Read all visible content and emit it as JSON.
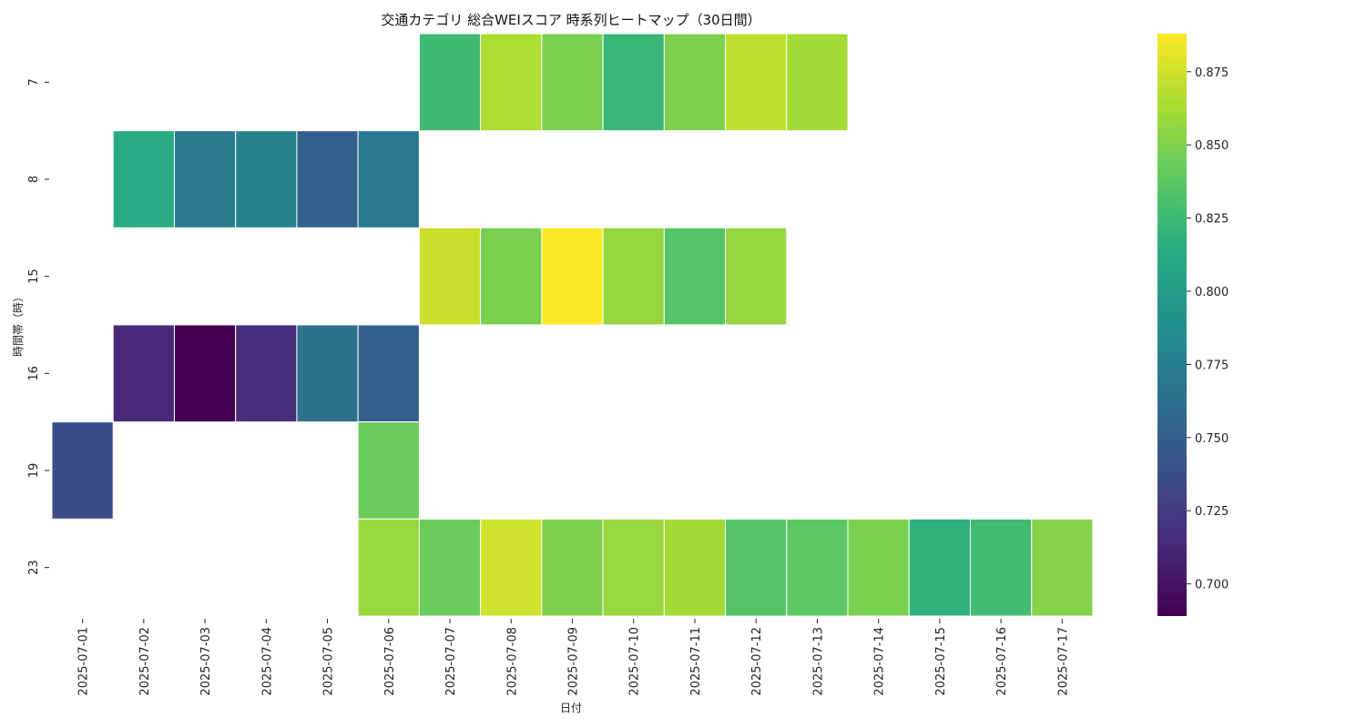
{
  "chart_data": {
    "type": "heatmap",
    "title": "交通カテゴリ 総合WEIスコア 時系列ヒートマップ（30日間）",
    "xlabel": "日付",
    "ylabel": "時間帯（時）",
    "x": [
      "2025-07-01",
      "2025-07-02",
      "2025-07-03",
      "2025-07-04",
      "2025-07-05",
      "2025-07-06",
      "2025-07-07",
      "2025-07-08",
      "2025-07-09",
      "2025-07-10",
      "2025-07-11",
      "2025-07-12",
      "2025-07-13",
      "2025-07-14",
      "2025-07-15",
      "2025-07-16",
      "2025-07-17"
    ],
    "y": [
      "7",
      "8",
      "15",
      "16",
      "19",
      "23"
    ],
    "values": [
      [
        null,
        null,
        null,
        null,
        null,
        null,
        0.825,
        0.865,
        0.848,
        0.823,
        0.85,
        0.87,
        0.862,
        null,
        null,
        null,
        null
      ],
      [
        null,
        0.813,
        0.772,
        0.778,
        0.752,
        0.771,
        null,
        null,
        null,
        null,
        null,
        null,
        null,
        null,
        null,
        null,
        null
      ],
      [
        null,
        null,
        null,
        null,
        null,
        null,
        0.873,
        0.848,
        0.887,
        0.857,
        0.835,
        0.857,
        null,
        null,
        null,
        null,
        null
      ],
      [
        null,
        0.713,
        0.689,
        0.716,
        0.765,
        0.752,
        null,
        null,
        null,
        null,
        null,
        null,
        null,
        null,
        null,
        null,
        null
      ],
      [
        0.737,
        null,
        null,
        null,
        null,
        0.843,
        null,
        null,
        null,
        null,
        null,
        null,
        null,
        null,
        null,
        null,
        null
      ],
      [
        null,
        null,
        null,
        null,
        null,
        0.858,
        0.843,
        0.875,
        0.85,
        0.858,
        0.862,
        0.835,
        0.838,
        0.848,
        0.818,
        0.827,
        0.852
      ]
    ],
    "colorbar": {
      "min": 0.689,
      "max": 0.888,
      "ticks": [
        "0.700",
        "0.725",
        "0.750",
        "0.775",
        "0.800",
        "0.825",
        "0.850",
        "0.875"
      ],
      "colormap": "viridis"
    },
    "grid": false,
    "legend": "colorbar-right"
  }
}
